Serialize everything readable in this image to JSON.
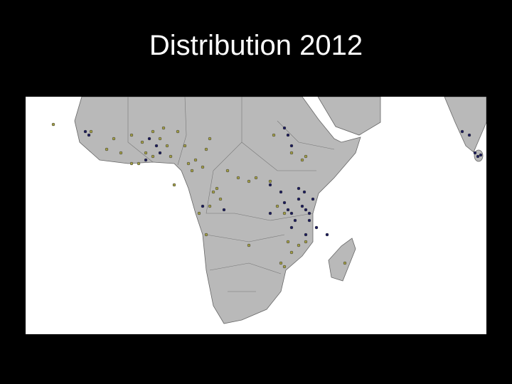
{
  "title": "Distribution 2012"
}
